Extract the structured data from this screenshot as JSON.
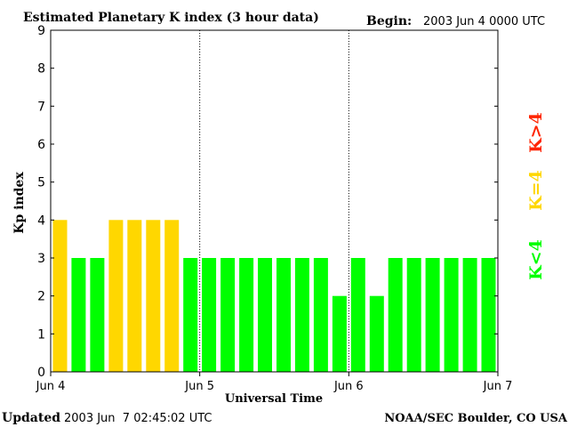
{
  "header": {
    "title": "Estimated Planetary K index (3 hour data)",
    "begin_label": "Begin:",
    "begin_value": "2003 Jun 4 0000 UTC"
  },
  "footer": {
    "updated_label": "Updated",
    "updated_value": "2003 Jun  7 02:45:02 UTC",
    "credit": "NOAA/SEC Boulder, CO USA"
  },
  "colors": {
    "quiet": "#00ff00",
    "unsettled": "#ffd700",
    "storm": "#ff2400",
    "axis": "#000000"
  },
  "legend": {
    "storm_label": "K>4",
    "unsettled_label": "K=4",
    "quiet_label": "K<4"
  },
  "chart_data": {
    "type": "bar",
    "title": "Estimated Planetary K index (3 hour data)",
    "xlabel": "Universal Time",
    "ylabel": "Kp index",
    "ylim": [
      0,
      9
    ],
    "yticks": [
      "0",
      "1",
      "2",
      "3",
      "4",
      "5",
      "6",
      "7",
      "8",
      "9"
    ],
    "xticks": [
      "Jun 4",
      "Jun 5",
      "Jun 6",
      "Jun 7"
    ],
    "bar_interval_hours": 3,
    "values": [
      4,
      3,
      3,
      4,
      4,
      4,
      4,
      3,
      3,
      3,
      3,
      3,
      3,
      3,
      3,
      2,
      3,
      2,
      3,
      3,
      3,
      3,
      3,
      3
    ],
    "day_separators": [
      "Jun 5",
      "Jun 6"
    ],
    "grid": false
  }
}
